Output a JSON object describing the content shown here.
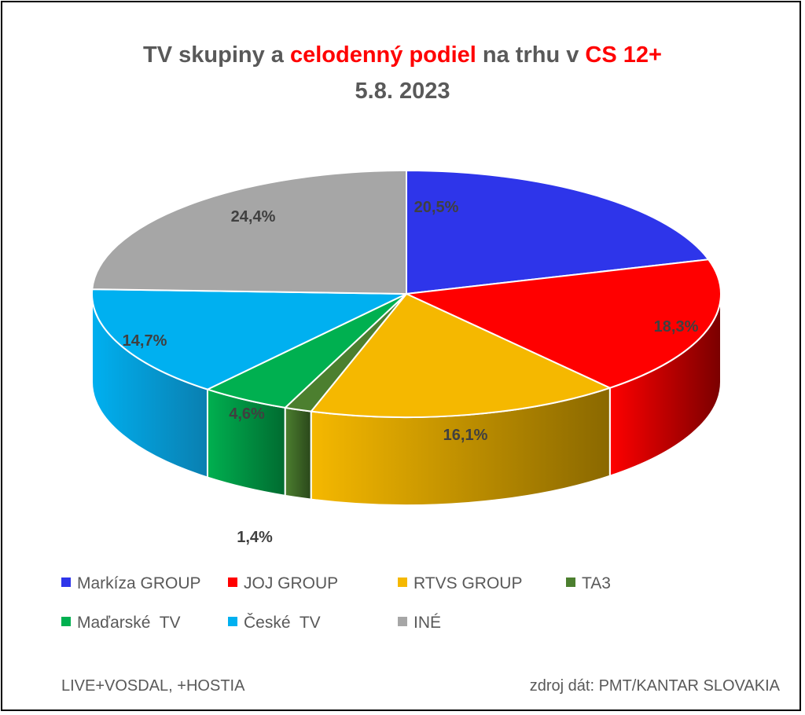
{
  "title": {
    "part1": "TV skupiny a ",
    "part2": "celodenný podiel",
    "part3": " na trhu v ",
    "part4": "CS 12+",
    "date": "5.8. 2023"
  },
  "chart_data": {
    "type": "pie",
    "title": "TV skupiny a celodenný podiel na trhu v CS 12+ 5.8. 2023",
    "legend_position": "bottom",
    "series": [
      {
        "name": "Markíza GROUP",
        "value": 20.5,
        "label": "20,5%",
        "color": "#2e35ea",
        "side": "#1b207e"
      },
      {
        "name": "JOJ GROUP",
        "value": 18.3,
        "label": "18,3%",
        "color": "#ff0000",
        "side": "#7a0000"
      },
      {
        "name": "RTVS GROUP",
        "value": 16.1,
        "label": "16,1%",
        "color": "#f5b800",
        "side": "#8a6800"
      },
      {
        "name": "TA3",
        "value": 1.4,
        "label": "1,4%",
        "color": "#4c7f2f",
        "side": "#2a471a"
      },
      {
        "name": "Maďarské  TV",
        "value": 4.6,
        "label": "4,6%",
        "color": "#00b050",
        "side": "#006b30"
      },
      {
        "name": "České  TV",
        "value": 14.7,
        "label": "14,7%",
        "color": "#00b0f0",
        "side": "#0a7fb0"
      },
      {
        "name": "INÉ",
        "value": 24.4,
        "label": "24,4%",
        "color": "#a6a6a6",
        "side": "#6e6e6e"
      }
    ]
  },
  "footer": {
    "left": "LIVE+VOSDAL, +HOSTIA",
    "right": "zdroj dát: PMT/KANTAR SLOVAKIA"
  }
}
